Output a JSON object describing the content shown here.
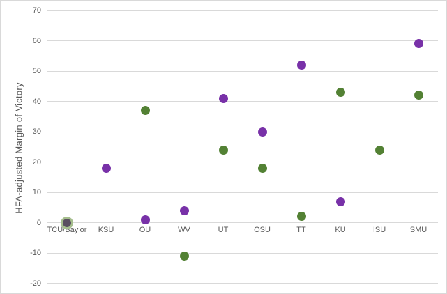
{
  "chart_data": {
    "type": "scatter",
    "title": "",
    "xlabel": "",
    "ylabel": "HFA-adjusted Margin of Victory",
    "categories": [
      "TCU/Baylor",
      "KSU",
      "OU",
      "WV",
      "UT",
      "OSU",
      "TT",
      "KU",
      "ISU",
      "SMU"
    ],
    "series": [
      {
        "name": "green-series",
        "color": "#538134",
        "values": [
          0,
          null,
          37,
          -11,
          24,
          18,
          2,
          43,
          24,
          42
        ]
      },
      {
        "name": "purple-series",
        "color": "#7831A8",
        "values": [
          0,
          18,
          1,
          4,
          41,
          30,
          52,
          7,
          null,
          59
        ]
      }
    ],
    "yticks": [
      70,
      60,
      50,
      40,
      30,
      20,
      10,
      0,
      -10,
      -20
    ],
    "ylim": [
      -20,
      70
    ],
    "grid": true,
    "legend": false,
    "overlap_marker": {
      "category_index": 0,
      "outer_series": "green-series",
      "outer_color": "#A6BE8E",
      "outer_diameter": 18,
      "inner_series": "purple-series",
      "inner_color": "#5A4F60",
      "inner_diameter": 12
    },
    "colors": {
      "gridline": "#D9D9D9",
      "axis_text": "#595959",
      "border": "#D9D9D9",
      "background": "#FFFFFF"
    }
  }
}
